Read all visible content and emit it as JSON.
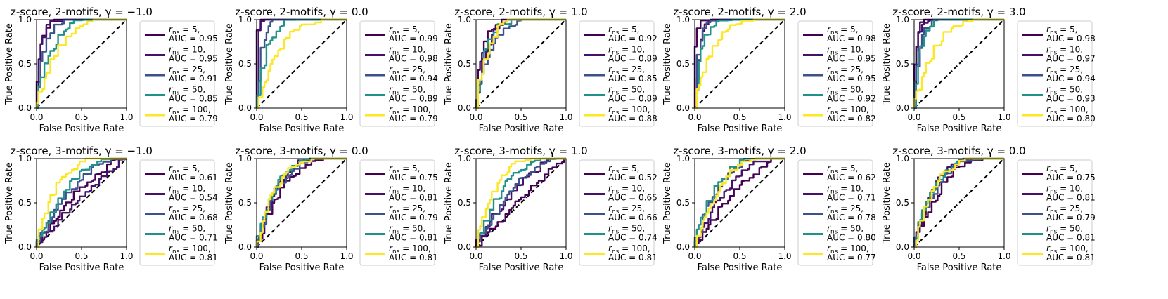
{
  "figure": {
    "xlabel": "False Positive Rate",
    "ylabel": "True Positive Rate",
    "x_ticks": [
      "0.0",
      "0.5",
      "1.0"
    ],
    "y_ticks": [
      "0.0",
      "0.5",
      "1.0"
    ],
    "legend_line2_prefix": "AUC = ",
    "series_names": [
      "r_ns = 5",
      "r_ns = 10",
      "r_ns = 25",
      "r_ns = 50",
      "r_ns = 100"
    ],
    "r_ns_values": [
      "5",
      "10",
      "25",
      "50",
      "100"
    ],
    "colors": [
      "#440154",
      "#46116a",
      "#3b528b",
      "#21918c",
      "#fde725"
    ],
    "diagonal_color": "#000000"
  },
  "chart_data": [
    {
      "type": "line",
      "title": "z-score, 2-motifs, γ = −1.0",
      "legend": "outside-right",
      "xlim": [
        0,
        1
      ],
      "ylim": [
        0,
        1
      ],
      "auc": [
        "0.95",
        "0.95",
        "0.91",
        "0.85",
        "0.79"
      ]
    },
    {
      "type": "line",
      "title": "z-score, 2-motifs, γ = 0.0",
      "legend": "outside-right",
      "xlim": [
        0,
        1
      ],
      "ylim": [
        0,
        1
      ],
      "auc": [
        "0.99",
        "0.98",
        "0.94",
        "0.89",
        "0.79"
      ]
    },
    {
      "type": "line",
      "title": "z-score, 2-motifs, γ = 1.0",
      "legend": "outside-right",
      "xlim": [
        0,
        1
      ],
      "ylim": [
        0,
        1
      ],
      "auc": [
        "0.92",
        "0.89",
        "0.85",
        "0.89",
        "0.88"
      ]
    },
    {
      "type": "line",
      "title": "z-score, 2-motifs, γ = 2.0",
      "legend": "outside-right",
      "xlim": [
        0,
        1
      ],
      "ylim": [
        0,
        1
      ],
      "auc": [
        "0.98",
        "0.95",
        "0.95",
        "0.92",
        "0.82"
      ]
    },
    {
      "type": "line",
      "title": "z-score, 2-motifs, γ = 3.0",
      "legend": "outside-right",
      "xlim": [
        0,
        1
      ],
      "ylim": [
        0,
        1
      ],
      "auc": [
        "0.98",
        "0.97",
        "0.94",
        "0.93",
        "0.80"
      ]
    },
    {
      "type": "line",
      "title": "z-score, 3-motifs, γ = −1.0",
      "legend": "outside-right",
      "xlim": [
        0,
        1
      ],
      "ylim": [
        0,
        1
      ],
      "auc": [
        "0.61",
        "0.54",
        "0.68",
        "0.71",
        "0.81"
      ]
    },
    {
      "type": "line",
      "title": "z-score, 3-motifs, γ = 0.0",
      "legend": "outside-right",
      "xlim": [
        0,
        1
      ],
      "ylim": [
        0,
        1
      ],
      "auc": [
        "0.75",
        "0.81",
        "0.79",
        "0.81",
        "0.81"
      ]
    },
    {
      "type": "line",
      "title": "z-score, 3-motifs, γ = 1.0",
      "legend": "outside-right",
      "xlim": [
        0,
        1
      ],
      "ylim": [
        0,
        1
      ],
      "auc": [
        "0.52",
        "0.65",
        "0.66",
        "0.74",
        "0.81"
      ]
    },
    {
      "type": "line",
      "title": "z-score, 3-motifs, γ = 2.0",
      "legend": "outside-right",
      "xlim": [
        0,
        1
      ],
      "ylim": [
        0,
        1
      ],
      "auc": [
        "0.62",
        "0.71",
        "0.78",
        "0.80",
        "0.77"
      ]
    },
    {
      "type": "line",
      "title": "z-score, 3-motifs, γ = 0.0",
      "legend": "outside-right",
      "xlim": [
        0,
        1
      ],
      "ylim": [
        0,
        1
      ],
      "auc": [
        "0.75",
        "0.81",
        "0.79",
        "0.81",
        "0.81"
      ]
    }
  ]
}
